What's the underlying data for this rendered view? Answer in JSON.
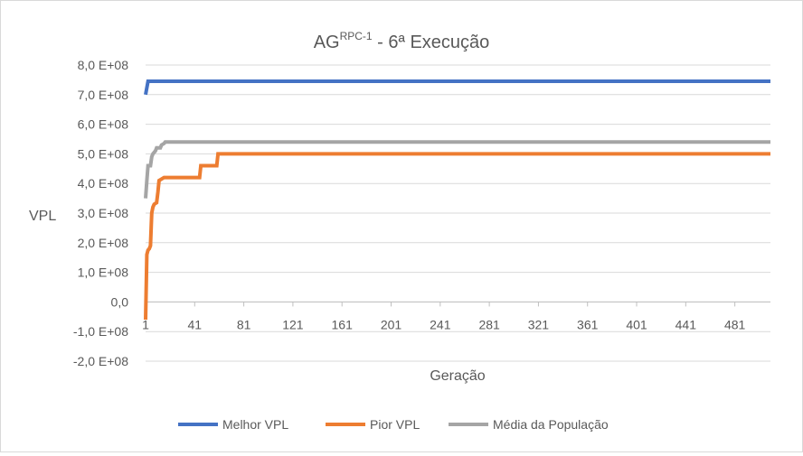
{
  "chart_data": {
    "type": "line",
    "title": {
      "main": "AG",
      "superscript": "RPC-1",
      "suffix": " - 6ª Execução"
    },
    "xlabel": "Geração",
    "ylabel": "VPL",
    "xlim": [
      1,
      510
    ],
    "ylim": [
      -200000000.0,
      800000000.0
    ],
    "y_ticks": [
      -200000000.0,
      -100000000.0,
      0,
      100000000.0,
      200000000.0,
      300000000.0,
      400000000.0,
      500000000.0,
      600000000.0,
      700000000.0,
      800000000.0
    ],
    "y_tick_labels": [
      "-2,0 E+08",
      "-1,0 E+08",
      "0,0",
      "1,0 E+08",
      "2,0 E+08",
      "3,0 E+08",
      "4,0 E+08",
      "5,0 E+08",
      "6,0 E+08",
      "7,0 E+08",
      "8,0 E+08"
    ],
    "x_ticks": [
      1,
      41,
      81,
      121,
      161,
      201,
      241,
      281,
      321,
      361,
      401,
      441,
      481
    ],
    "x_tick_labels": [
      "1",
      "41",
      "81",
      "121",
      "161",
      "201",
      "241",
      "281",
      "321",
      "361",
      "401",
      "441",
      "481"
    ],
    "grid": "horizontal",
    "legend_position": "bottom",
    "series": [
      {
        "name": "Melhor VPL",
        "color": "#4472c4",
        "points": [
          [
            1,
            700000000.0
          ],
          [
            3,
            745000000.0
          ],
          [
            510,
            745000000.0
          ]
        ]
      },
      {
        "name": "Pior VPL",
        "color": "#ed7d31",
        "points": [
          [
            1,
            -60000000.0
          ],
          [
            2,
            160000000.0
          ],
          [
            3,
            175000000.0
          ],
          [
            4,
            180000000.0
          ],
          [
            5,
            190000000.0
          ],
          [
            6,
            300000000.0
          ],
          [
            7,
            320000000.0
          ],
          [
            8,
            330000000.0
          ],
          [
            10,
            335000000.0
          ],
          [
            11,
            370000000.0
          ],
          [
            12,
            410000000.0
          ],
          [
            14,
            415000000.0
          ],
          [
            16,
            420000000.0
          ],
          [
            45,
            420000000.0
          ],
          [
            46,
            460000000.0
          ],
          [
            59,
            460000000.0
          ],
          [
            60,
            500000000.0
          ],
          [
            510,
            500000000.0
          ]
        ]
      },
      {
        "name": "Média da População",
        "color": "#a5a5a5",
        "points": [
          [
            1,
            350000000.0
          ],
          [
            2,
            410000000.0
          ],
          [
            3,
            460000000.0
          ],
          [
            5,
            460000000.0
          ],
          [
            6,
            490000000.0
          ],
          [
            7,
            500000000.0
          ],
          [
            9,
            510000000.0
          ],
          [
            10,
            520000000.0
          ],
          [
            13,
            520000000.0
          ],
          [
            14,
            530000000.0
          ],
          [
            16,
            535000000.0
          ],
          [
            17,
            540000000.0
          ],
          [
            510,
            540000000.0
          ]
        ]
      }
    ]
  }
}
